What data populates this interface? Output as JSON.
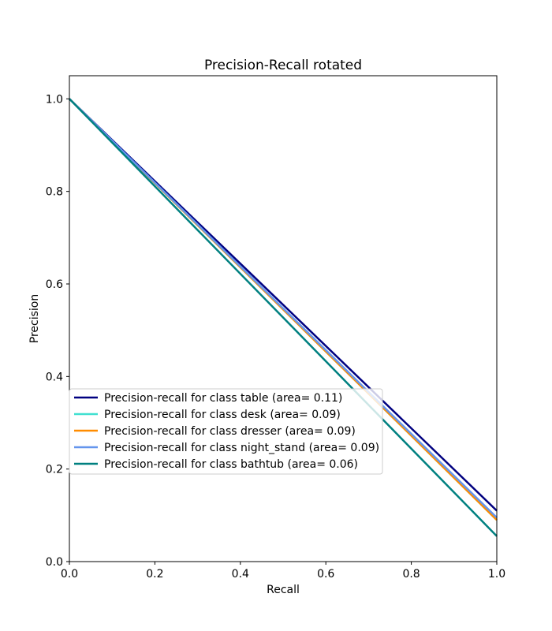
{
  "chart_data": {
    "type": "line",
    "title": "Precision-Recall rotated",
    "xlabel": "Recall",
    "ylabel": "Precision",
    "xlim": [
      0.0,
      1.0
    ],
    "ylim": [
      0.0,
      1.05
    ],
    "x_ticks": [
      0.0,
      0.2,
      0.4,
      0.6,
      0.8,
      1.0
    ],
    "y_ticks": [
      0.0,
      0.2,
      0.4,
      0.6,
      0.8,
      1.0
    ],
    "x_tick_labels": [
      "0.0",
      "0.2",
      "0.4",
      "0.6",
      "0.8",
      "1.0"
    ],
    "y_tick_labels": [
      "0.0",
      "0.2",
      "0.4",
      "0.6",
      "0.8",
      "1.0"
    ],
    "grid": false,
    "legend_position": "lower-left",
    "series": [
      {
        "name": "Precision-recall for class table (area= 0.11)",
        "color": "#000080",
        "x": [
          0.0,
          1.0
        ],
        "y": [
          1.0,
          0.11
        ]
      },
      {
        "name": "Precision-recall for class desk (area= 0.09)",
        "color": "#40e0d0",
        "x": [
          0.0,
          1.0
        ],
        "y": [
          1.0,
          0.09
        ]
      },
      {
        "name": "Precision-recall for class dresser (area= 0.09)",
        "color": "#ff8c00",
        "x": [
          0.0,
          1.0
        ],
        "y": [
          1.0,
          0.09
        ]
      },
      {
        "name": "Precision-recall for class night_stand (area= 0.09)",
        "color": "#6495ed",
        "x": [
          0.0,
          1.0
        ],
        "y": [
          1.0,
          0.095
        ]
      },
      {
        "name": "Precision-recall for class bathtub (area= 0.06)",
        "color": "#008080",
        "x": [
          0.0,
          1.0
        ],
        "y": [
          1.0,
          0.055
        ]
      }
    ]
  }
}
